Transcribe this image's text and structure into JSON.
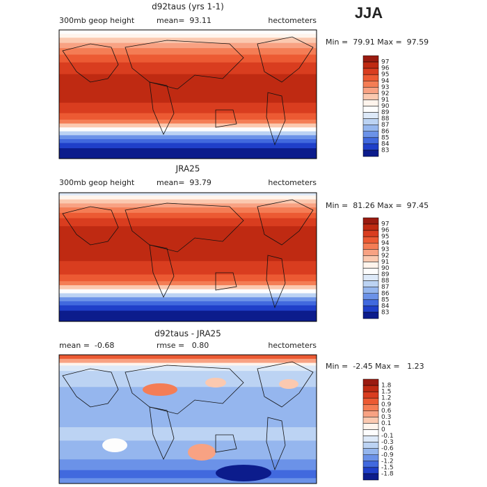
{
  "header": {
    "season": "JJA"
  },
  "panels": [
    {
      "title": "d92taus (yrs 1-1)",
      "left_label": "300mb geop height",
      "center_label": "mean=  93.11",
      "units": "hectometers",
      "minmax": "Min =  79.91 Max =  97.59",
      "colorbar": {
        "labels": [
          "97",
          "96",
          "95",
          "94",
          "93",
          "92",
          "91",
          "90",
          "89",
          "88",
          "87",
          "86",
          "85",
          "84",
          "83"
        ],
        "colors": [
          "#9a1b10",
          "#bf2a12",
          "#d93d1f",
          "#ec5a33",
          "#f47d55",
          "#f8a283",
          "#fbc9b0",
          "#fff4ec",
          "#fdfdfd",
          "#dde9f8",
          "#bcd3f3",
          "#95b6ee",
          "#6b92e8",
          "#4169de",
          "#1f3fc9",
          "#0c1c8c"
        ]
      }
    },
    {
      "title": "JRA25",
      "left_label": "300mb geop height",
      "center_label": "mean=  93.79",
      "units": "hectometers",
      "minmax": "Min =  81.26 Max =  97.45",
      "colorbar": {
        "labels": [
          "97",
          "96",
          "95",
          "94",
          "93",
          "92",
          "91",
          "90",
          "89",
          "88",
          "87",
          "86",
          "85",
          "84",
          "83"
        ],
        "colors": [
          "#9a1b10",
          "#bf2a12",
          "#d93d1f",
          "#ec5a33",
          "#f47d55",
          "#f8a283",
          "#fbc9b0",
          "#fff4ec",
          "#fdfdfd",
          "#dde9f8",
          "#bcd3f3",
          "#95b6ee",
          "#6b92e8",
          "#4169de",
          "#1f3fc9",
          "#0c1c8c"
        ]
      }
    },
    {
      "title": "d92taus - JRA25",
      "left_label": "mean =  -0.68",
      "center_label": "rmse =   0.80",
      "units": "hectometers",
      "minmax": "Min =  -2.45 Max =   1.23",
      "colorbar": {
        "labels": [
          "1.8",
          "1.5",
          "1.2",
          "0.9",
          "0.6",
          "0.3",
          "0.1",
          "0",
          "-0.1",
          "-0.3",
          "-0.6",
          "-0.9",
          "-1.2",
          "-1.5",
          "-1.8"
        ],
        "colors": [
          "#9a1b10",
          "#bf2a12",
          "#d93d1f",
          "#ec5a33",
          "#f47d55",
          "#f8a283",
          "#fbc9b0",
          "#fff4ec",
          "#fdfdfd",
          "#dde9f8",
          "#bcd3f3",
          "#95b6ee",
          "#6b92e8",
          "#4169de",
          "#1f3fc9",
          "#0c1c8c"
        ]
      }
    }
  ]
}
